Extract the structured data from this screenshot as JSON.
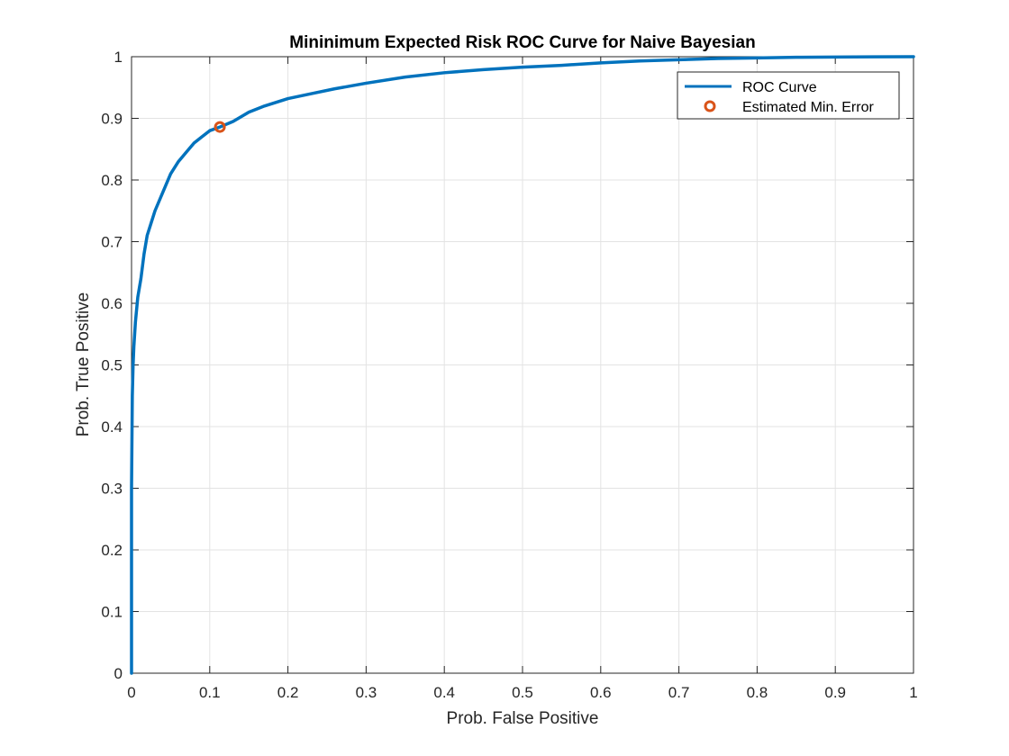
{
  "chart_data": {
    "type": "line",
    "title": "Mininimum Expected Risk ROC Curve for Naive Bayesian",
    "xlabel": "Prob. False Positive",
    "ylabel": "Prob. True Positive",
    "xlim": [
      0,
      1
    ],
    "ylim": [
      0,
      1
    ],
    "xticks": [
      "0",
      "0.1",
      "0.2",
      "0.3",
      "0.4",
      "0.5",
      "0.6",
      "0.7",
      "0.8",
      "0.9",
      "1"
    ],
    "yticks": [
      "0",
      "0.1",
      "0.2",
      "0.3",
      "0.4",
      "0.5",
      "0.6",
      "0.7",
      "0.8",
      "0.9",
      "1"
    ],
    "grid": true,
    "legend_position": "top-right",
    "series": [
      {
        "name": "ROC Curve",
        "kind": "line",
        "color": "#0072BD",
        "x": [
          0,
          0,
          0.001,
          0.002,
          0.003,
          0.005,
          0.008,
          0.012,
          0.016,
          0.02,
          0.025,
          0.03,
          0.04,
          0.05,
          0.06,
          0.07,
          0.08,
          0.09,
          0.1,
          0.113,
          0.13,
          0.15,
          0.17,
          0.2,
          0.23,
          0.26,
          0.3,
          0.35,
          0.4,
          0.45,
          0.5,
          0.55,
          0.6,
          0.65,
          0.7,
          0.75,
          0.8,
          0.85,
          0.9,
          0.95,
          1.0
        ],
        "y": [
          0,
          0.3,
          0.45,
          0.5,
          0.53,
          0.57,
          0.61,
          0.64,
          0.68,
          0.71,
          0.73,
          0.75,
          0.78,
          0.81,
          0.83,
          0.845,
          0.86,
          0.87,
          0.88,
          0.886,
          0.895,
          0.91,
          0.92,
          0.932,
          0.94,
          0.948,
          0.957,
          0.967,
          0.974,
          0.979,
          0.983,
          0.986,
          0.99,
          0.993,
          0.995,
          0.997,
          0.998,
          0.999,
          0.9995,
          0.9998,
          1.0
        ]
      },
      {
        "name": "Estimated Min. Error",
        "kind": "marker",
        "color": "#D95319",
        "x": [
          0.113
        ],
        "y": [
          0.886
        ]
      }
    ]
  }
}
